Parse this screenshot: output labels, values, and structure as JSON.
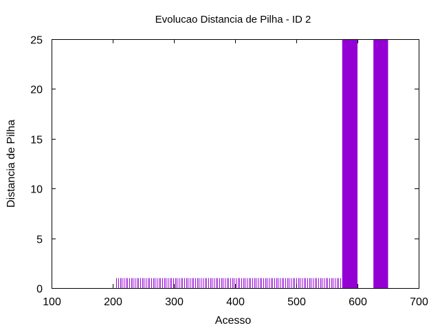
{
  "chart_data": {
    "type": "bar",
    "title": "Evolucao Distancia de Pilha - ID 2",
    "xlabel": "Acesso",
    "ylabel": "Distancia de Pilha",
    "xlim": [
      100,
      700
    ],
    "ylim": [
      0,
      25
    ],
    "xticks": [
      100,
      200,
      300,
      400,
      500,
      600,
      700
    ],
    "yticks": [
      0,
      5,
      10,
      15,
      20,
      25
    ],
    "grid": false,
    "legend": "none",
    "color": "#9400d3",
    "series": [
      {
        "style": "impulses",
        "x_start": 206,
        "x_end": 575,
        "x_step": 3,
        "y": 1
      },
      {
        "style": "wide-bars",
        "bars": [
          {
            "x_from": 575,
            "x_to": 600,
            "y": 25
          },
          {
            "x_from": 626,
            "x_to": 650,
            "y": 25
          }
        ]
      }
    ]
  }
}
